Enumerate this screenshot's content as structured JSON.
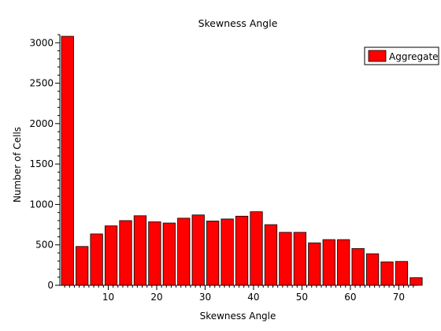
{
  "chart_data": {
    "type": "bar",
    "title": "Skewness Angle",
    "xlabel": "Skewness Angle",
    "ylabel": "Number of Cells",
    "xlim": [
      0,
      74
    ],
    "ylim": [
      0,
      3100
    ],
    "x_ticks": [
      10,
      20,
      30,
      40,
      50,
      60,
      70
    ],
    "y_ticks": [
      0,
      500,
      1000,
      1500,
      2000,
      2500,
      3000
    ],
    "bin_width": 3,
    "legend_position": "top-right",
    "series": [
      {
        "name": "Aggregate",
        "color": "#ff0000",
        "bin_starts": [
          0,
          3,
          6,
          9,
          12,
          15,
          18,
          21,
          24,
          27,
          30,
          33,
          36,
          39,
          42,
          45,
          48,
          51,
          54,
          57,
          60,
          63,
          66,
          69,
          72
        ],
        "values": [
          3080,
          480,
          635,
          735,
          800,
          860,
          785,
          770,
          830,
          870,
          795,
          820,
          855,
          910,
          750,
          655,
          655,
          525,
          565,
          565,
          455,
          390,
          290,
          295,
          95
        ]
      }
    ]
  }
}
